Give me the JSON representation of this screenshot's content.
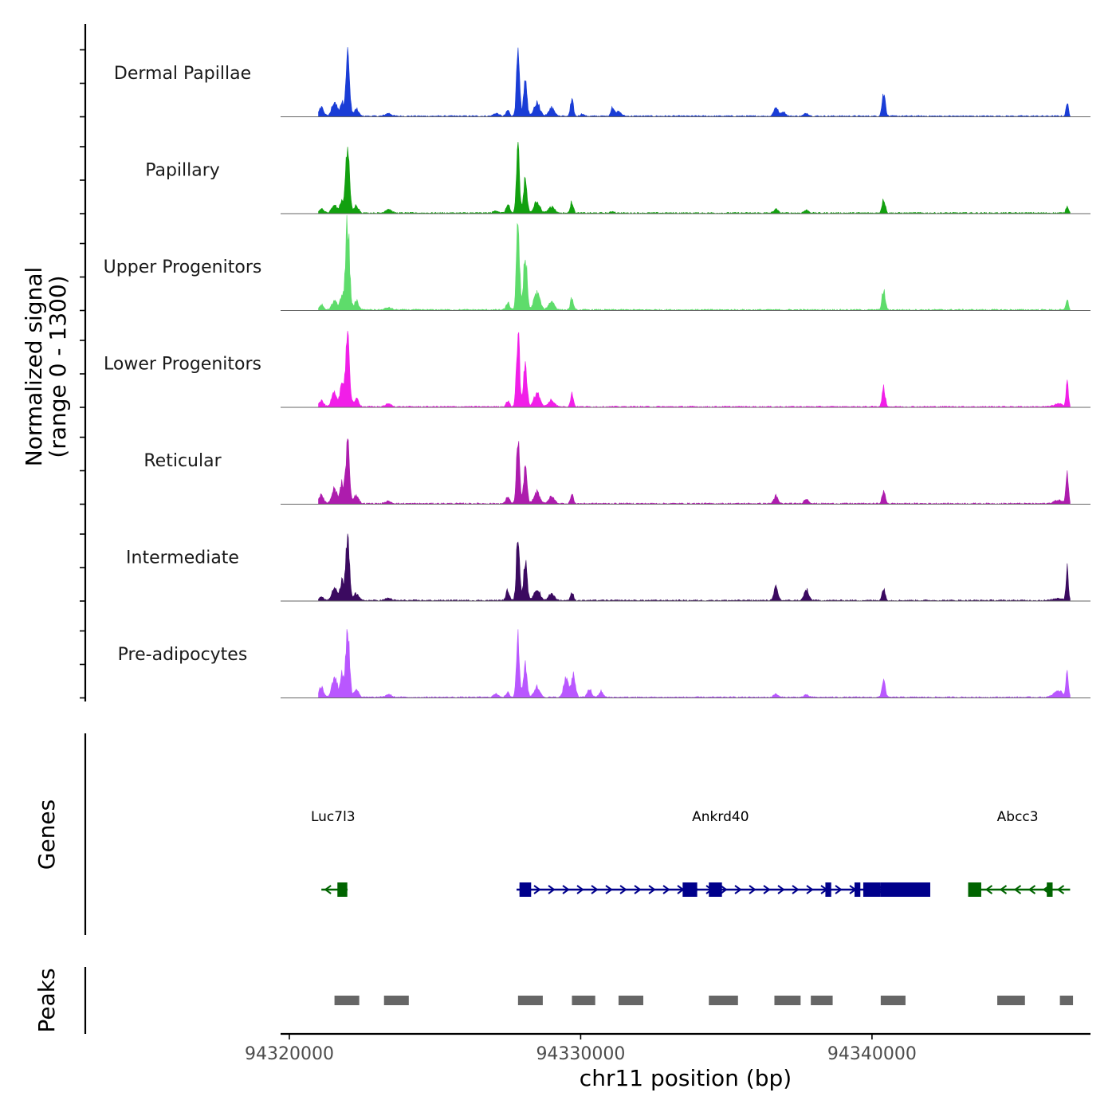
{
  "chart_data": {
    "type": "area",
    "title": "",
    "xlabel": "chr11 position (bp)",
    "ylabel_line1": "Normalized signal",
    "ylabel_line2": "(range 0 - 1300)",
    "genes_label": "Genes",
    "peaks_label": "Peaks",
    "xlim": [
      94319700,
      94347500
    ],
    "ylim": [
      0,
      1300
    ],
    "x_ticks": [
      {
        "value": 94320000,
        "label": "94320000"
      },
      {
        "value": 94330000,
        "label": "94330000"
      },
      {
        "value": 94340000,
        "label": "94340000"
      }
    ],
    "peak_shape_positions": [
      94321800,
      94322000,
      94327800,
      94328050,
      94329700,
      94331100,
      94336700,
      94337750,
      94340400,
      94346700
    ],
    "series": [
      {
        "name": "Dermal Papillae",
        "color": "#1a3dd6",
        "peaks": [
          [
            94321100,
            1.5,
            80
          ],
          [
            94321550,
            2.5,
            90
          ],
          [
            94321800,
            2.3,
            60
          ],
          [
            94322000,
            10.8,
            65
          ],
          [
            94322300,
            1.2,
            80
          ],
          [
            94323400,
            0.5,
            100
          ],
          [
            94327100,
            0.5,
            90
          ],
          [
            94327500,
            1,
            60
          ],
          [
            94327850,
            10.2,
            55
          ],
          [
            94328100,
            6,
            60
          ],
          [
            94328500,
            2.5,
            100
          ],
          [
            94329000,
            1.5,
            100
          ],
          [
            94329700,
            2.8,
            50
          ],
          [
            94330050,
            0.4,
            60
          ],
          [
            94331100,
            1.6,
            60
          ],
          [
            94331300,
            0.8,
            90
          ],
          [
            94336700,
            1.6,
            70
          ],
          [
            94336950,
            0.8,
            80
          ],
          [
            94337750,
            0.5,
            80
          ],
          [
            94340400,
            4.2,
            55
          ],
          [
            94346700,
            2.3,
            40
          ]
        ]
      },
      {
        "name": "Papillary",
        "color": "#12a00f",
        "peaks": [
          [
            94321100,
            0.8,
            80
          ],
          [
            94321550,
            1.5,
            90
          ],
          [
            94321800,
            2,
            60
          ],
          [
            94322000,
            11.8,
            65
          ],
          [
            94322300,
            1.3,
            80
          ],
          [
            94323400,
            0.7,
            100
          ],
          [
            94327100,
            0.4,
            90
          ],
          [
            94327500,
            1.4,
            60
          ],
          [
            94327850,
            11,
            55
          ],
          [
            94328100,
            6,
            60
          ],
          [
            94328500,
            2,
            100
          ],
          [
            94329000,
            1.2,
            100
          ],
          [
            94329700,
            2,
            50
          ],
          [
            94331100,
            0.3,
            60
          ],
          [
            94336700,
            0.7,
            70
          ],
          [
            94337750,
            0.5,
            80
          ],
          [
            94340400,
            2.5,
            55
          ],
          [
            94346700,
            1.4,
            40
          ]
        ]
      },
      {
        "name": "Upper Progenitors",
        "color": "#5edc6b",
        "peaks": [
          [
            94321100,
            0.8,
            80
          ],
          [
            94321550,
            1.5,
            90
          ],
          [
            94321800,
            2.5,
            60
          ],
          [
            94322000,
            15.5,
            65
          ],
          [
            94322300,
            1.5,
            80
          ],
          [
            94323400,
            0.4,
            100
          ],
          [
            94327500,
            1.2,
            60
          ],
          [
            94327850,
            14.5,
            55
          ],
          [
            94328100,
            9.5,
            60
          ],
          [
            94328500,
            3,
            100
          ],
          [
            94329000,
            1.5,
            100
          ],
          [
            94329700,
            2,
            50
          ],
          [
            94340400,
            3.5,
            55
          ],
          [
            94346700,
            2,
            40
          ]
        ]
      },
      {
        "name": "Lower Progenitors",
        "color": "#f11ee8",
        "peaks": [
          [
            94321100,
            1,
            80
          ],
          [
            94321550,
            2.8,
            90
          ],
          [
            94321800,
            3.5,
            60
          ],
          [
            94322000,
            13.6,
            65
          ],
          [
            94322300,
            1.4,
            80
          ],
          [
            94323400,
            0.5,
            100
          ],
          [
            94327500,
            1,
            60
          ],
          [
            94327850,
            13,
            55
          ],
          [
            94328100,
            7.5,
            60
          ],
          [
            94328500,
            2.5,
            100
          ],
          [
            94329000,
            1.2,
            100
          ],
          [
            94329700,
            2.3,
            50
          ],
          [
            94340400,
            3.2,
            55
          ],
          [
            94346700,
            4.5,
            40
          ],
          [
            94346400,
            0.5,
            150
          ]
        ]
      },
      {
        "name": "Reticular",
        "color": "#ad1cad",
        "peaks": [
          [
            94321100,
            1.5,
            80
          ],
          [
            94321550,
            2.5,
            90
          ],
          [
            94321800,
            3.5,
            60
          ],
          [
            94322000,
            10.5,
            65
          ],
          [
            94322300,
            1.5,
            80
          ],
          [
            94323400,
            0.4,
            100
          ],
          [
            94327500,
            1.3,
            60
          ],
          [
            94327850,
            10.5,
            55
          ],
          [
            94328100,
            6,
            60
          ],
          [
            94328500,
            2,
            100
          ],
          [
            94329000,
            1.2,
            100
          ],
          [
            94329700,
            1.6,
            50
          ],
          [
            94336700,
            1.3,
            70
          ],
          [
            94337750,
            0.8,
            80
          ],
          [
            94340400,
            2.2,
            55
          ],
          [
            94346700,
            5.8,
            40
          ],
          [
            94346400,
            0.6,
            150
          ]
        ]
      },
      {
        "name": "Intermediate",
        "color": "#3b0a60",
        "peaks": [
          [
            94321100,
            0.7,
            80
          ],
          [
            94321550,
            2.2,
            90
          ],
          [
            94321800,
            3.2,
            60
          ],
          [
            94322000,
            10.5,
            65
          ],
          [
            94322300,
            1.3,
            80
          ],
          [
            94323400,
            0.4,
            100
          ],
          [
            94327500,
            1.8,
            60
          ],
          [
            94327850,
            11.5,
            55
          ],
          [
            94328100,
            6.8,
            60
          ],
          [
            94328500,
            2,
            100
          ],
          [
            94329000,
            1.2,
            100
          ],
          [
            94329700,
            1.4,
            50
          ],
          [
            94336700,
            2.3,
            70
          ],
          [
            94337750,
            1.8,
            80
          ],
          [
            94340400,
            2,
            55
          ],
          [
            94346700,
            5.5,
            40
          ],
          [
            94346400,
            0.4,
            150
          ]
        ]
      },
      {
        "name": "Pre-adipocytes",
        "color": "#b957ff",
        "peaks": [
          [
            94321100,
            1.8,
            80
          ],
          [
            94321550,
            3.5,
            90
          ],
          [
            94321800,
            4,
            60
          ],
          [
            94322000,
            12,
            65
          ],
          [
            94322300,
            1.5,
            80
          ],
          [
            94323400,
            0.5,
            100
          ],
          [
            94327100,
            0.6,
            90
          ],
          [
            94327500,
            0.8,
            60
          ],
          [
            94327850,
            10.5,
            55
          ],
          [
            94328100,
            5.5,
            60
          ],
          [
            94328500,
            1.8,
            100
          ],
          [
            94329500,
            3.5,
            80
          ],
          [
            94329750,
            3.8,
            70
          ],
          [
            94330300,
            1.5,
            70
          ],
          [
            94330700,
            1,
            70
          ],
          [
            94336700,
            0.6,
            70
          ],
          [
            94337750,
            0.4,
            80
          ],
          [
            94340400,
            3,
            55
          ],
          [
            94346700,
            4.8,
            40
          ],
          [
            94346400,
            1.2,
            150
          ]
        ]
      }
    ],
    "genes": [
      {
        "name": "Luc7l3",
        "strand": "-",
        "start": 94321100,
        "end": 94322000,
        "color": "#006400",
        "exons": [
          [
            94321650,
            94321990
          ]
        ],
        "label_x": 94321500
      },
      {
        "name": "Ankrd40",
        "strand": "+",
        "start": 94327800,
        "end": 94342000,
        "color": "#00008b",
        "exons": [
          [
            94327900,
            94328300
          ],
          [
            94333500,
            94334000
          ],
          [
            94334400,
            94334850
          ],
          [
            94338400,
            94338600
          ],
          [
            94339400,
            94339600
          ],
          [
            94339700,
            94340300
          ],
          [
            94340300,
            94342000
          ]
        ],
        "label_x": 94334800
      },
      {
        "name": "Abcc3",
        "strand": "-",
        "start": 94343300,
        "end": 94346800,
        "color": "#006400",
        "exons": [
          [
            94343300,
            94343750
          ],
          [
            94346000,
            94346200
          ]
        ],
        "label_x": 94345000
      }
    ],
    "peaks": [
      [
        94321550,
        94322400
      ],
      [
        94323250,
        94324100
      ],
      [
        94327850,
        94328700
      ],
      [
        94329700,
        94330500
      ],
      [
        94331300,
        94332150
      ],
      [
        94334400,
        94335400
      ],
      [
        94336650,
        94337550
      ],
      [
        94337900,
        94338650
      ],
      [
        94340300,
        94341150
      ],
      [
        94344300,
        94345250
      ],
      [
        94346450,
        94346900
      ]
    ]
  }
}
